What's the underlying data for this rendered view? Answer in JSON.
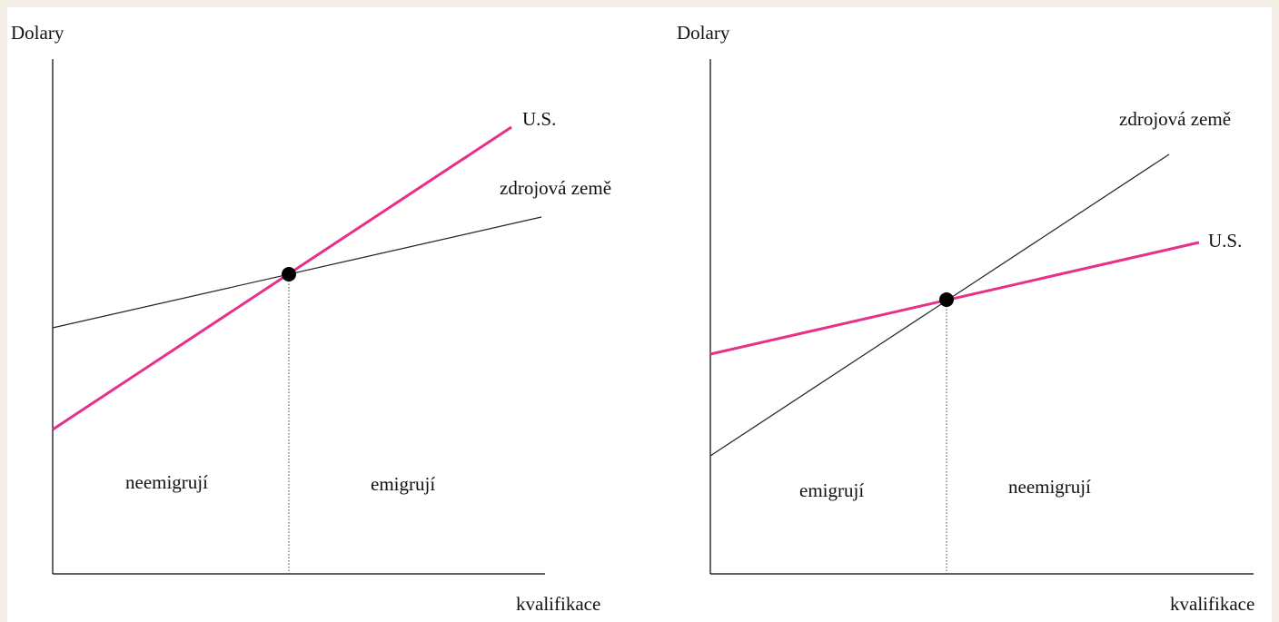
{
  "panels": [
    {
      "y_axis_label": "Dolary",
      "x_axis_label": "kvalifikace",
      "line_labels": {
        "us": "U.S.",
        "source": "zdrojová země"
      },
      "regions": {
        "left": "neemigrují",
        "right": "emigrují"
      }
    },
    {
      "y_axis_label": "Dolary",
      "x_axis_label": "kvalifikace",
      "line_labels": {
        "us": "U.S.",
        "source": "zdrojová země"
      },
      "regions": {
        "left": "emigrují",
        "right": "neemigrují"
      }
    }
  ]
}
